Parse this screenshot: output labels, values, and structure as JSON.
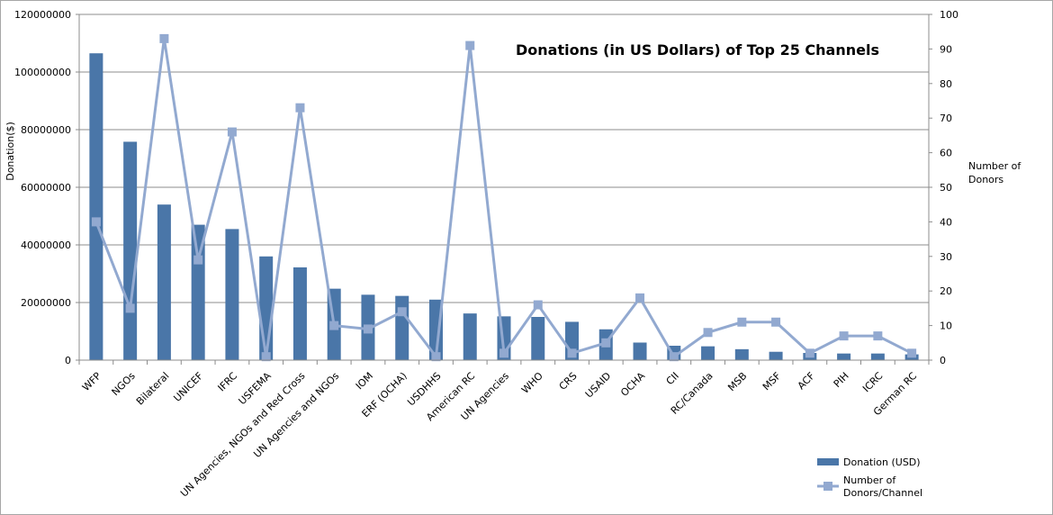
{
  "chart_data": {
    "type": "bar",
    "title": "Donations (in US Dollars) of Top 25 Channels",
    "ylabel": "Donation($)",
    "y2label_lines": [
      "Number of",
      "Donors"
    ],
    "ylim": [
      0,
      120000000
    ],
    "y2lim": [
      0,
      100
    ],
    "yticks": [
      "0",
      "20000000",
      "40000000",
      "60000000",
      "80000000",
      "100000000",
      "120000000"
    ],
    "y2ticks": [
      "0",
      "10",
      "20",
      "30",
      "40",
      "50",
      "60",
      "70",
      "80",
      "90",
      "100"
    ],
    "categories": [
      "WFP",
      "NGOs",
      "Bilateral",
      "UNICEF",
      "IFRC",
      "USFEMA",
      "UN Agencies, NGOs and Red Cross",
      "UN Agencies and NGOs",
      "IOM",
      "ERF (OCHA)",
      "USDHHS",
      "American RC",
      "UN Agencies",
      "WHO",
      "CRS",
      "USAID",
      "OCHA",
      "CII",
      "RC/Canada",
      "MSB",
      "MSF",
      "ACF",
      "PIH",
      "ICRC",
      "German RC"
    ],
    "series": [
      {
        "name": "Donation (USD)",
        "type": "bar",
        "axis": "left",
        "color": "#4a76a8",
        "values": [
          106500000,
          75800000,
          54000000,
          47000000,
          45500000,
          36000000,
          32200000,
          24800000,
          22700000,
          22300000,
          21000000,
          16200000,
          15200000,
          15000000,
          13300000,
          10700000,
          6100000,
          5000000,
          4800000,
          3800000,
          2900000,
          2500000,
          2300000,
          2300000,
          2000000
        ]
      },
      {
        "name": "Number of Donors/Channel",
        "type": "line",
        "axis": "right",
        "color": "#92a9d0",
        "values": [
          40,
          15,
          93,
          29,
          66,
          1,
          73,
          10,
          9,
          14,
          1,
          91,
          2,
          16,
          2,
          5,
          18,
          1,
          8,
          11,
          11,
          2,
          7,
          7,
          2
        ]
      }
    ],
    "legend": {
      "position": "bottom-right",
      "bar_label": "Donation (USD)",
      "line_label_lines": [
        "Number of",
        "Donors/Channel"
      ]
    },
    "grid": true
  }
}
